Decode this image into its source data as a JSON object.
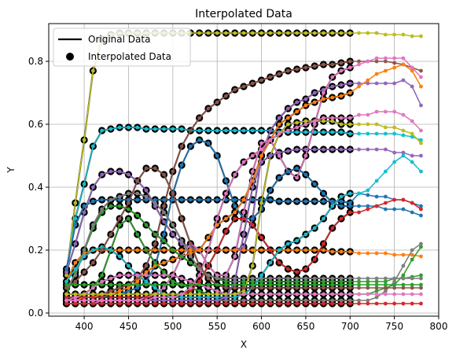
{
  "chart_data": {
    "type": "line",
    "title": "Interpolated Data",
    "xlabel": "X",
    "ylabel": "Y",
    "xlim": [
      360,
      800
    ],
    "ylim": [
      -0.01,
      0.92
    ],
    "xticks": [
      400,
      450,
      500,
      550,
      600,
      650,
      700,
      750,
      800
    ],
    "yticks": [
      0.0,
      0.2,
      0.4,
      0.6,
      0.8
    ],
    "xtick_labels": [
      "400",
      "450",
      "500",
      "550",
      "600",
      "650",
      "700",
      "750",
      "800"
    ],
    "ytick_labels": [
      "0.0",
      "0.2",
      "0.4",
      "0.6",
      "0.8"
    ],
    "grid": true,
    "legend": {
      "placement": "top-left",
      "entries": [
        {
          "label": "Original Data",
          "marker": "line",
          "color": "#000000"
        },
        {
          "label": "Interpolated Data",
          "marker": "dot",
          "color": "#000000"
        }
      ]
    },
    "original_x": [
      380,
      390,
      400,
      410,
      420,
      430,
      440,
      450,
      460,
      470,
      480,
      490,
      500,
      510,
      520,
      530,
      540,
      550,
      560,
      570,
      580,
      590,
      600,
      610,
      620,
      630,
      640,
      650,
      660,
      670,
      680,
      690,
      700
    ],
    "extended_x": [
      710,
      720,
      730,
      740,
      750,
      760,
      770,
      780
    ],
    "series": [
      {
        "color": "#bcbd22",
        "original": [
          0.12,
          0.35,
          0.55,
          0.77,
          0.87,
          0.885,
          0.89,
          0.89,
          0.89,
          0.89,
          0.89,
          0.89,
          0.89,
          0.89,
          0.89,
          0.89,
          0.89,
          0.89,
          0.89,
          0.89,
          0.89,
          0.89,
          0.89,
          0.89,
          0.89,
          0.89,
          0.89,
          0.89,
          0.89,
          0.89,
          0.89,
          0.89,
          0.89
        ],
        "extended": [
          0.89,
          0.89,
          0.89,
          0.885,
          0.885,
          0.885,
          0.88,
          0.88
        ]
      },
      {
        "color": "#17becf",
        "original": [
          0.13,
          0.3,
          0.41,
          0.53,
          0.58,
          0.585,
          0.59,
          0.59,
          0.59,
          0.585,
          0.585,
          0.585,
          0.585,
          0.585,
          0.58,
          0.58,
          0.58,
          0.58,
          0.58,
          0.58,
          0.58,
          0.58,
          0.58,
          0.58,
          0.575,
          0.575,
          0.575,
          0.575,
          0.575,
          0.575,
          0.575,
          0.575,
          0.57
        ],
        "extended": [
          0.57,
          0.57,
          0.57,
          0.57,
          0.57,
          0.565,
          0.56,
          0.55
        ]
      },
      {
        "color": "#8c564b",
        "original": [
          0.06,
          0.06,
          0.06,
          0.06,
          0.06,
          0.07,
          0.08,
          0.09,
          0.11,
          0.15,
          0.22,
          0.34,
          0.45,
          0.53,
          0.58,
          0.62,
          0.65,
          0.67,
          0.69,
          0.71,
          0.72,
          0.73,
          0.74,
          0.75,
          0.76,
          0.77,
          0.775,
          0.78,
          0.785,
          0.79,
          0.79,
          0.795,
          0.8
        ],
        "extended": [
          0.8,
          0.8,
          0.8,
          0.8,
          0.795,
          0.79,
          0.78,
          0.77
        ]
      },
      {
        "color": "#9467bd",
        "original": [
          0.13,
          0.22,
          0.32,
          0.4,
          0.44,
          0.45,
          0.45,
          0.44,
          0.42,
          0.39,
          0.34,
          0.29,
          0.25,
          0.22,
          0.21,
          0.2,
          0.2,
          0.2,
          0.2,
          0.2,
          0.21,
          0.3,
          0.5,
          0.58,
          0.62,
          0.65,
          0.67,
          0.68,
          0.7,
          0.71,
          0.72,
          0.725,
          0.73
        ],
        "extended": [
          0.73,
          0.73,
          0.73,
          0.73,
          0.73,
          0.74,
          0.72,
          0.66
        ]
      },
      {
        "color": "#e377c2",
        "original": [
          0.03,
          0.03,
          0.03,
          0.03,
          0.04,
          0.04,
          0.04,
          0.04,
          0.04,
          0.05,
          0.06,
          0.08,
          0.12,
          0.18,
          0.22,
          0.2,
          0.15,
          0.12,
          0.12,
          0.18,
          0.32,
          0.45,
          0.54,
          0.55,
          0.5,
          0.45,
          0.43,
          0.5,
          0.6,
          0.7,
          0.75,
          0.77,
          0.78
        ],
        "extended": [
          0.79,
          0.8,
          0.81,
          0.81,
          0.81,
          0.81,
          0.78,
          0.75
        ]
      },
      {
        "color": "#1f77b4",
        "original": [
          0.14,
          0.28,
          0.34,
          0.355,
          0.36,
          0.36,
          0.36,
          0.36,
          0.36,
          0.36,
          0.36,
          0.36,
          0.36,
          0.36,
          0.36,
          0.36,
          0.36,
          0.36,
          0.36,
          0.36,
          0.36,
          0.36,
          0.36,
          0.36,
          0.355,
          0.355,
          0.355,
          0.355,
          0.355,
          0.355,
          0.355,
          0.355,
          0.35
        ],
        "extended": [
          0.38,
          0.375,
          0.37,
          0.37,
          0.36,
          0.36,
          0.35,
          0.34
        ]
      },
      {
        "color": "#1f77b4",
        "original": [
          0.05,
          0.05,
          0.05,
          0.05,
          0.05,
          0.06,
          0.06,
          0.07,
          0.08,
          0.1,
          0.15,
          0.25,
          0.38,
          0.47,
          0.53,
          0.55,
          0.54,
          0.5,
          0.42,
          0.34,
          0.3,
          0.3,
          0.33,
          0.39,
          0.43,
          0.45,
          0.46,
          0.44,
          0.41,
          0.38,
          0.35,
          0.34,
          0.34
        ],
        "extended": [
          0.34,
          0.34,
          0.34,
          0.33,
          0.33,
          0.33,
          0.32,
          0.31
        ]
      },
      {
        "color": "#ff7f0e",
        "original": [
          0.1,
          0.16,
          0.19,
          0.2,
          0.2,
          0.2,
          0.2,
          0.2,
          0.2,
          0.2,
          0.2,
          0.2,
          0.2,
          0.2,
          0.2,
          0.2,
          0.2,
          0.2,
          0.2,
          0.2,
          0.2,
          0.2,
          0.2,
          0.2,
          0.2,
          0.2,
          0.2,
          0.2,
          0.2,
          0.2,
          0.195,
          0.195,
          0.195
        ],
        "extended": [
          0.19,
          0.19,
          0.19,
          0.19,
          0.185,
          0.185,
          0.185,
          0.18
        ]
      },
      {
        "color": "#ff7f0e",
        "original": [
          0.04,
          0.04,
          0.05,
          0.05,
          0.06,
          0.06,
          0.07,
          0.08,
          0.1,
          0.13,
          0.15,
          0.16,
          0.17,
          0.18,
          0.19,
          0.2,
          0.24,
          0.28,
          0.3,
          0.32,
          0.36,
          0.42,
          0.5,
          0.55,
          0.6,
          0.62,
          0.64,
          0.66,
          0.67,
          0.68,
          0.685,
          0.69,
          0.7
        ],
        "extended": [
          0.72,
          0.74,
          0.76,
          0.77,
          0.78,
          0.79,
          0.77,
          0.72
        ]
      },
      {
        "color": "#2ca02c",
        "original": [
          0.06,
          0.13,
          0.2,
          0.27,
          0.32,
          0.34,
          0.34,
          0.33,
          0.31,
          0.28,
          0.25,
          0.23,
          0.2,
          0.18,
          0.16,
          0.14,
          0.12,
          0.11,
          0.1,
          0.1,
          0.1,
          0.1,
          0.1,
          0.1,
          0.1,
          0.1,
          0.1,
          0.1,
          0.1,
          0.1,
          0.1,
          0.1,
          0.1
        ],
        "extended": [
          0.1,
          0.1,
          0.1,
          0.1,
          0.11,
          0.11,
          0.115,
          0.12
        ]
      },
      {
        "color": "#2ca02c",
        "original": [
          0.05,
          0.05,
          0.06,
          0.08,
          0.12,
          0.2,
          0.28,
          0.3,
          0.25,
          0.2,
          0.16,
          0.13,
          0.1,
          0.09,
          0.08,
          0.07,
          0.06,
          0.06,
          0.06,
          0.06,
          0.06,
          0.06,
          0.06,
          0.06,
          0.06,
          0.06,
          0.06,
          0.06,
          0.06,
          0.06,
          0.06,
          0.06,
          0.06
        ],
        "extended": [
          0.06,
          0.06,
          0.07,
          0.08,
          0.09,
          0.12,
          0.17,
          0.21
        ]
      },
      {
        "color": "#d62728",
        "original": [
          0.05,
          0.05,
          0.05,
          0.05,
          0.05,
          0.05,
          0.05,
          0.05,
          0.05,
          0.05,
          0.05,
          0.05,
          0.05,
          0.06,
          0.07,
          0.1,
          0.15,
          0.2,
          0.26,
          0.3,
          0.3,
          0.28,
          0.24,
          0.2,
          0.16,
          0.14,
          0.13,
          0.14,
          0.17,
          0.22,
          0.27,
          0.3,
          0.32
        ],
        "extended": [
          0.32,
          0.33,
          0.34,
          0.35,
          0.36,
          0.36,
          0.35,
          0.33
        ]
      },
      {
        "color": "#7f7f7f",
        "original": [
          0.08,
          0.12,
          0.2,
          0.28,
          0.33,
          0.36,
          0.37,
          0.38,
          0.38,
          0.37,
          0.35,
          0.32,
          0.28,
          0.23,
          0.18,
          0.14,
          0.12,
          0.11,
          0.11,
          0.11,
          0.11,
          0.11,
          0.11,
          0.11,
          0.11,
          0.11,
          0.11,
          0.11,
          0.11,
          0.11,
          0.11,
          0.11,
          0.11
        ],
        "extended": [
          0.11,
          0.11,
          0.11,
          0.11,
          0.11,
          0.11,
          0.11,
          0.11
        ]
      },
      {
        "color": "#7f7f7f",
        "original": [
          0.04,
          0.04,
          0.04,
          0.04,
          0.04,
          0.04,
          0.04,
          0.04,
          0.04,
          0.04,
          0.04,
          0.04,
          0.04,
          0.04,
          0.04,
          0.04,
          0.04,
          0.04,
          0.04,
          0.04,
          0.04,
          0.04,
          0.04,
          0.04,
          0.04,
          0.04,
          0.04,
          0.04,
          0.04,
          0.04,
          0.04,
          0.04,
          0.04
        ],
        "extended": [
          0.04,
          0.04,
          0.05,
          0.07,
          0.1,
          0.15,
          0.2,
          0.22
        ]
      },
      {
        "color": "#17becf",
        "original": [
          0.1,
          0.14,
          0.18,
          0.2,
          0.21,
          0.2,
          0.18,
          0.15,
          0.12,
          0.1,
          0.08,
          0.06,
          0.05,
          0.05,
          0.05,
          0.05,
          0.05,
          0.05,
          0.05,
          0.05,
          0.06,
          0.08,
          0.12,
          0.16,
          0.2,
          0.22,
          0.23,
          0.25,
          0.27,
          0.3,
          0.34,
          0.37,
          0.38
        ],
        "extended": [
          0.38,
          0.39,
          0.42,
          0.45,
          0.48,
          0.5,
          0.48,
          0.45
        ]
      },
      {
        "color": "#e377c2",
        "original": [
          0.04,
          0.05,
          0.06,
          0.08,
          0.1,
          0.11,
          0.12,
          0.12,
          0.12,
          0.12,
          0.12,
          0.12,
          0.12,
          0.11,
          0.1,
          0.09,
          0.08,
          0.07,
          0.06,
          0.06,
          0.06,
          0.06,
          0.06,
          0.06,
          0.06,
          0.06,
          0.06,
          0.06,
          0.06,
          0.06,
          0.06,
          0.06,
          0.06
        ],
        "extended": [
          0.06,
          0.06,
          0.06,
          0.06,
          0.06,
          0.06,
          0.06,
          0.06
        ]
      },
      {
        "color": "#d62728",
        "original": [
          0.03,
          0.03,
          0.03,
          0.03,
          0.03,
          0.03,
          0.03,
          0.03,
          0.03,
          0.03,
          0.03,
          0.03,
          0.03,
          0.03,
          0.03,
          0.03,
          0.03,
          0.03,
          0.03,
          0.03,
          0.03,
          0.03,
          0.03,
          0.03,
          0.03,
          0.03,
          0.03,
          0.03,
          0.03,
          0.03,
          0.03,
          0.03,
          0.03
        ],
        "extended": [
          0.03,
          0.03,
          0.03,
          0.03,
          0.03,
          0.03,
          0.03,
          0.03
        ]
      },
      {
        "color": "#bcbd22",
        "original": [
          0.06,
          0.06,
          0.06,
          0.06,
          0.06,
          0.06,
          0.06,
          0.06,
          0.06,
          0.06,
          0.06,
          0.06,
          0.06,
          0.06,
          0.06,
          0.06,
          0.06,
          0.06,
          0.06,
          0.06,
          0.07,
          0.15,
          0.35,
          0.5,
          0.57,
          0.6,
          0.605,
          0.61,
          0.61,
          0.61,
          0.61,
          0.6,
          0.6
        ],
        "extended": [
          0.6,
          0.6,
          0.6,
          0.59,
          0.59,
          0.58,
          0.57,
          0.54
        ]
      },
      {
        "color": "#9467bd",
        "original": [
          0.04,
          0.04,
          0.04,
          0.04,
          0.04,
          0.04,
          0.04,
          0.04,
          0.04,
          0.04,
          0.04,
          0.04,
          0.04,
          0.04,
          0.04,
          0.04,
          0.04,
          0.04,
          0.05,
          0.1,
          0.25,
          0.4,
          0.48,
          0.5,
          0.51,
          0.515,
          0.52,
          0.52,
          0.52,
          0.52,
          0.52,
          0.52,
          0.52
        ],
        "extended": [
          0.52,
          0.52,
          0.52,
          0.52,
          0.51,
          0.51,
          0.5,
          0.5
        ]
      },
      {
        "color": "#e377c2",
        "original": [
          0.04,
          0.04,
          0.04,
          0.04,
          0.04,
          0.04,
          0.04,
          0.04,
          0.04,
          0.04,
          0.05,
          0.05,
          0.05,
          0.06,
          0.08,
          0.12,
          0.2,
          0.3,
          0.38,
          0.44,
          0.48,
          0.5,
          0.52,
          0.55,
          0.57,
          0.58,
          0.59,
          0.6,
          0.61,
          0.62,
          0.62,
          0.62,
          0.62
        ],
        "extended": [
          0.63,
          0.63,
          0.64,
          0.64,
          0.64,
          0.63,
          0.61,
          0.58
        ]
      },
      {
        "color": "#8c564b",
        "original": [
          0.08,
          0.1,
          0.13,
          0.16,
          0.2,
          0.25,
          0.3,
          0.35,
          0.42,
          0.46,
          0.46,
          0.44,
          0.38,
          0.3,
          0.22,
          0.15,
          0.11,
          0.09,
          0.08,
          0.08,
          0.08,
          0.08,
          0.08,
          0.08,
          0.08,
          0.08,
          0.08,
          0.08,
          0.08,
          0.08,
          0.08,
          0.08,
          0.08
        ],
        "extended": [
          0.08,
          0.08,
          0.08,
          0.08,
          0.08,
          0.08,
          0.08,
          0.08
        ]
      },
      {
        "color": "#2ca02c",
        "original": [
          0.09,
          0.09,
          0.09,
          0.09,
          0.09,
          0.09,
          0.09,
          0.09,
          0.09,
          0.09,
          0.09,
          0.09,
          0.09,
          0.09,
          0.09,
          0.09,
          0.09,
          0.09,
          0.09,
          0.09,
          0.09,
          0.09,
          0.09,
          0.09,
          0.09,
          0.09,
          0.09,
          0.09,
          0.09,
          0.09,
          0.09,
          0.09,
          0.09
        ],
        "extended": [
          0.09,
          0.09,
          0.09,
          0.09,
          0.09,
          0.09,
          0.09,
          0.09
        ]
      }
    ]
  }
}
